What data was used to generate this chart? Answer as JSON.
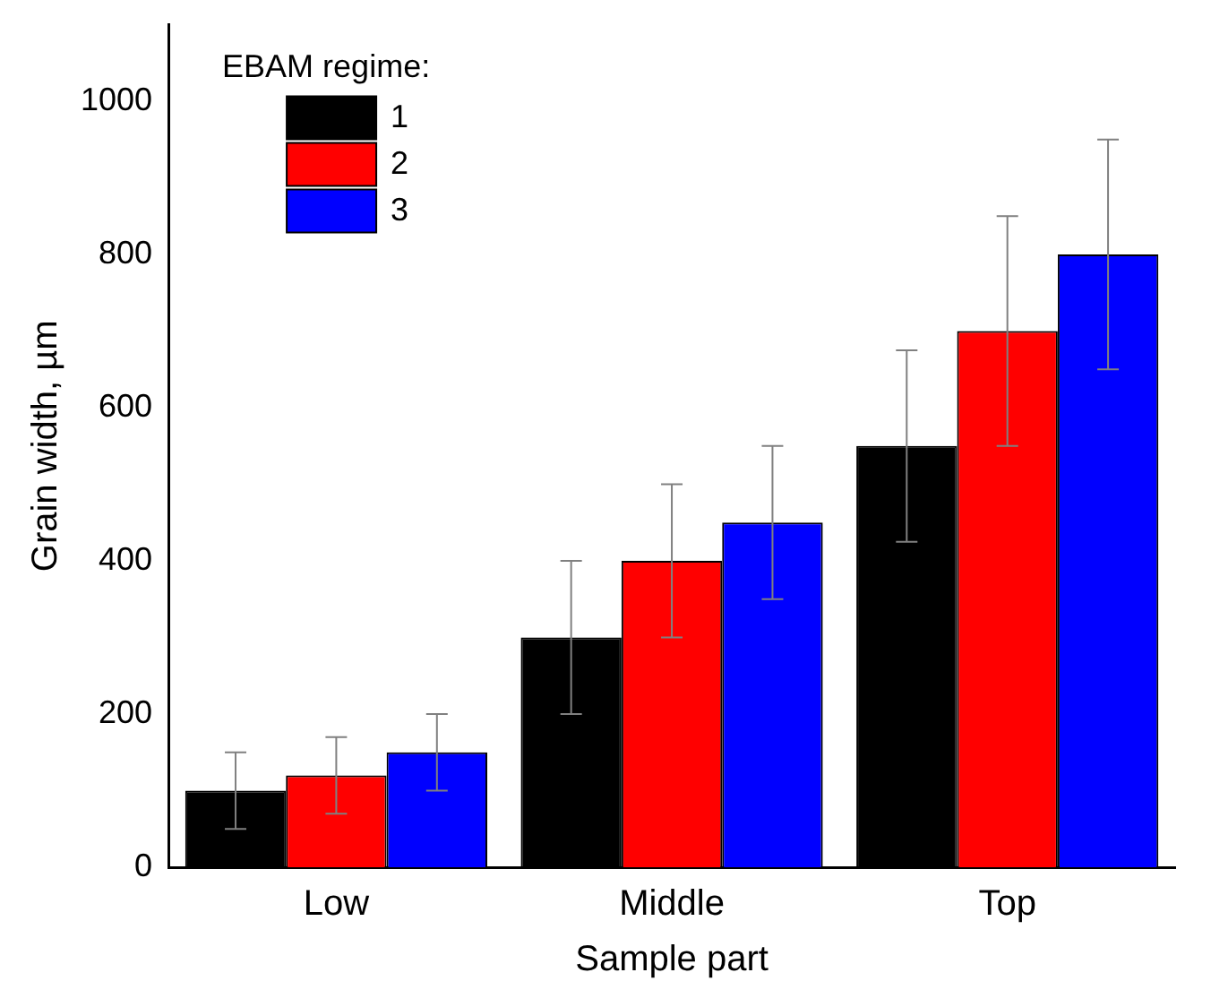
{
  "chart_data": {
    "type": "bar",
    "xlabel": "Sample part",
    "ylabel": "Grain width, µm",
    "legend_title": "EBAM regime:",
    "categories": [
      "Low",
      "Middle",
      "Top"
    ],
    "series": [
      {
        "name": "1",
        "color": "#000000",
        "values": [
          100,
          300,
          550
        ],
        "errors": [
          50,
          100,
          125
        ]
      },
      {
        "name": "2",
        "color": "#ff0000",
        "values": [
          120,
          400,
          700
        ],
        "errors": [
          50,
          100,
          150
        ]
      },
      {
        "name": "3",
        "color": "#0000ff",
        "values": [
          150,
          450,
          800
        ],
        "errors": [
          50,
          100,
          150
        ]
      }
    ],
    "ylim": [
      0,
      1100
    ],
    "yticks": [
      0,
      200,
      400,
      600,
      800,
      1000
    ],
    "grid": false,
    "legend": "top left"
  }
}
